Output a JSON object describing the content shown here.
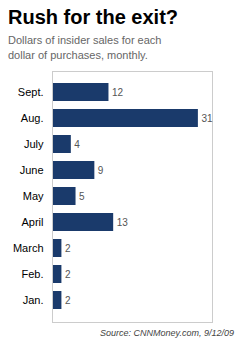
{
  "chart_data": {
    "type": "bar",
    "orientation": "horizontal",
    "title": "Rush for the exit?",
    "subtitle": "Dollars of insider sales for each\ndollar of purchases, monthly.",
    "source": "Source: CNNMoney.com, 9/12/09",
    "categories": [
      "Sept.",
      "Aug.",
      "July",
      "June",
      "May",
      "April",
      "March",
      "Feb.",
      "Jan."
    ],
    "values": [
      12,
      31,
      4,
      9,
      5,
      13,
      2,
      2,
      2
    ],
    "color": "#1a3a6b",
    "xlim": [
      0,
      34
    ],
    "data_labels": true,
    "tick_labels": "y"
  }
}
